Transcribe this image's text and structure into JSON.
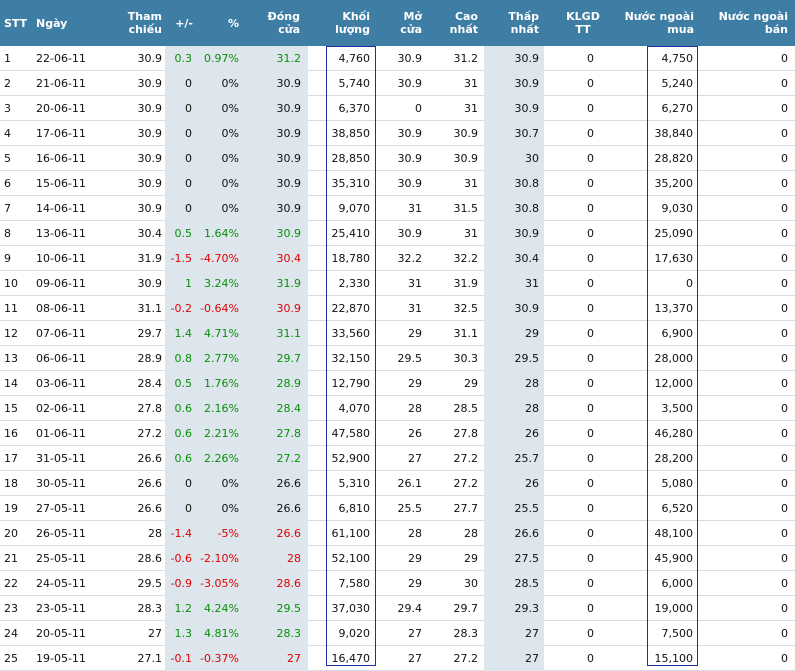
{
  "headers": {
    "stt": "STT",
    "ngay": "Ngày",
    "tham_chieu": [
      "Tham",
      "chiếu"
    ],
    "change": "+/-",
    "pct": "%",
    "dong_cua": [
      "Đóng",
      "cửa"
    ],
    "khoi_luong": [
      "Khối",
      "lượng"
    ],
    "mo_cua": [
      "Mở",
      "cửa"
    ],
    "cao_nhat": [
      "Cao",
      "nhất"
    ],
    "thap_nhat": [
      "Thấp",
      "nhất"
    ],
    "klgd_tt": [
      "KLGD",
      "TT"
    ],
    "nn_mua": [
      "Nước ngoài",
      "mua"
    ],
    "nn_ban": [
      "Nước ngoài",
      "bán"
    ]
  },
  "colors": {
    "header_bg": "#3e7da4",
    "up": "#0a8f0a",
    "down": "#e00000",
    "band": "#dde6ec",
    "box": "#1c2fa8"
  },
  "rows": [
    {
      "stt": "1",
      "date": "22-06-11",
      "ref": "30.9",
      "chg": "0.3",
      "pct": "0.97%",
      "close": "31.2",
      "vol": "4,760",
      "open": "30.9",
      "high": "31.2",
      "low": "30.9",
      "klgd": "0",
      "buy": "4,750",
      "sell": "0",
      "trend": "up"
    },
    {
      "stt": "2",
      "date": "21-06-11",
      "ref": "30.9",
      "chg": "0",
      "pct": "0%",
      "close": "30.9",
      "vol": "5,740",
      "open": "30.9",
      "high": "31",
      "low": "30.9",
      "klgd": "0",
      "buy": "5,240",
      "sell": "0",
      "trend": "flat"
    },
    {
      "stt": "3",
      "date": "20-06-11",
      "ref": "30.9",
      "chg": "0",
      "pct": "0%",
      "close": "30.9",
      "vol": "6,370",
      "open": "0",
      "high": "31",
      "low": "30.9",
      "klgd": "0",
      "buy": "6,270",
      "sell": "0",
      "trend": "flat"
    },
    {
      "stt": "4",
      "date": "17-06-11",
      "ref": "30.9",
      "chg": "0",
      "pct": "0%",
      "close": "30.9",
      "vol": "38,850",
      "open": "30.9",
      "high": "30.9",
      "low": "30.7",
      "klgd": "0",
      "buy": "38,840",
      "sell": "0",
      "trend": "flat"
    },
    {
      "stt": "5",
      "date": "16-06-11",
      "ref": "30.9",
      "chg": "0",
      "pct": "0%",
      "close": "30.9",
      "vol": "28,850",
      "open": "30.9",
      "high": "30.9",
      "low": "30",
      "klgd": "0",
      "buy": "28,820",
      "sell": "0",
      "trend": "flat"
    },
    {
      "stt": "6",
      "date": "15-06-11",
      "ref": "30.9",
      "chg": "0",
      "pct": "0%",
      "close": "30.9",
      "vol": "35,310",
      "open": "30.9",
      "high": "31",
      "low": "30.8",
      "klgd": "0",
      "buy": "35,200",
      "sell": "0",
      "trend": "flat"
    },
    {
      "stt": "7",
      "date": "14-06-11",
      "ref": "30.9",
      "chg": "0",
      "pct": "0%",
      "close": "30.9",
      "vol": "9,070",
      "open": "31",
      "high": "31.5",
      "low": "30.8",
      "klgd": "0",
      "buy": "9,030",
      "sell": "0",
      "trend": "flat"
    },
    {
      "stt": "8",
      "date": "13-06-11",
      "ref": "30.4",
      "chg": "0.5",
      "pct": "1.64%",
      "close": "30.9",
      "vol": "25,410",
      "open": "30.9",
      "high": "31",
      "low": "30.9",
      "klgd": "0",
      "buy": "25,090",
      "sell": "0",
      "trend": "up"
    },
    {
      "stt": "9",
      "date": "10-06-11",
      "ref": "31.9",
      "chg": "-1.5",
      "pct": "-4.70%",
      "close": "30.4",
      "vol": "18,780",
      "open": "32.2",
      "high": "32.2",
      "low": "30.4",
      "klgd": "0",
      "buy": "17,630",
      "sell": "0",
      "trend": "down"
    },
    {
      "stt": "10",
      "date": "09-06-11",
      "ref": "30.9",
      "chg": "1",
      "pct": "3.24%",
      "close": "31.9",
      "vol": "2,330",
      "open": "31",
      "high": "31.9",
      "low": "31",
      "klgd": "0",
      "buy": "0",
      "sell": "0",
      "trend": "up"
    },
    {
      "stt": "11",
      "date": "08-06-11",
      "ref": "31.1",
      "chg": "-0.2",
      "pct": "-0.64%",
      "close": "30.9",
      "vol": "22,870",
      "open": "31",
      "high": "32.5",
      "low": "30.9",
      "klgd": "0",
      "buy": "13,370",
      "sell": "0",
      "trend": "down"
    },
    {
      "stt": "12",
      "date": "07-06-11",
      "ref": "29.7",
      "chg": "1.4",
      "pct": "4.71%",
      "close": "31.1",
      "vol": "33,560",
      "open": "29",
      "high": "31.1",
      "low": "29",
      "klgd": "0",
      "buy": "6,900",
      "sell": "0",
      "trend": "up"
    },
    {
      "stt": "13",
      "date": "06-06-11",
      "ref": "28.9",
      "chg": "0.8",
      "pct": "2.77%",
      "close": "29.7",
      "vol": "32,150",
      "open": "29.5",
      "high": "30.3",
      "low": "29.5",
      "klgd": "0",
      "buy": "28,000",
      "sell": "0",
      "trend": "up"
    },
    {
      "stt": "14",
      "date": "03-06-11",
      "ref": "28.4",
      "chg": "0.5",
      "pct": "1.76%",
      "close": "28.9",
      "vol": "12,790",
      "open": "29",
      "high": "29",
      "low": "28",
      "klgd": "0",
      "buy": "12,000",
      "sell": "0",
      "trend": "up"
    },
    {
      "stt": "15",
      "date": "02-06-11",
      "ref": "27.8",
      "chg": "0.6",
      "pct": "2.16%",
      "close": "28.4",
      "vol": "4,070",
      "open": "28",
      "high": "28.5",
      "low": "28",
      "klgd": "0",
      "buy": "3,500",
      "sell": "0",
      "trend": "up"
    },
    {
      "stt": "16",
      "date": "01-06-11",
      "ref": "27.2",
      "chg": "0.6",
      "pct": "2.21%",
      "close": "27.8",
      "vol": "47,580",
      "open": "26",
      "high": "27.8",
      "low": "26",
      "klgd": "0",
      "buy": "46,280",
      "sell": "0",
      "trend": "up"
    },
    {
      "stt": "17",
      "date": "31-05-11",
      "ref": "26.6",
      "chg": "0.6",
      "pct": "2.26%",
      "close": "27.2",
      "vol": "52,900",
      "open": "27",
      "high": "27.2",
      "low": "25.7",
      "klgd": "0",
      "buy": "28,200",
      "sell": "0",
      "trend": "up"
    },
    {
      "stt": "18",
      "date": "30-05-11",
      "ref": "26.6",
      "chg": "0",
      "pct": "0%",
      "close": "26.6",
      "vol": "5,310",
      "open": "26.1",
      "high": "27.2",
      "low": "26",
      "klgd": "0",
      "buy": "5,080",
      "sell": "0",
      "trend": "flat"
    },
    {
      "stt": "19",
      "date": "27-05-11",
      "ref": "26.6",
      "chg": "0",
      "pct": "0%",
      "close": "26.6",
      "vol": "6,810",
      "open": "25.5",
      "high": "27.7",
      "low": "25.5",
      "klgd": "0",
      "buy": "6,520",
      "sell": "0",
      "trend": "flat"
    },
    {
      "stt": "20",
      "date": "26-05-11",
      "ref": "28",
      "chg": "-1.4",
      "pct": "-5%",
      "close": "26.6",
      "vol": "61,100",
      "open": "28",
      "high": "28",
      "low": "26.6",
      "klgd": "0",
      "buy": "48,100",
      "sell": "0",
      "trend": "down"
    },
    {
      "stt": "21",
      "date": "25-05-11",
      "ref": "28.6",
      "chg": "-0.6",
      "pct": "-2.10%",
      "close": "28",
      "vol": "52,100",
      "open": "29",
      "high": "29",
      "low": "27.5",
      "klgd": "0",
      "buy": "45,900",
      "sell": "0",
      "trend": "down"
    },
    {
      "stt": "22",
      "date": "24-05-11",
      "ref": "29.5",
      "chg": "-0.9",
      "pct": "-3.05%",
      "close": "28.6",
      "vol": "7,580",
      "open": "29",
      "high": "30",
      "low": "28.5",
      "klgd": "0",
      "buy": "6,000",
      "sell": "0",
      "trend": "down"
    },
    {
      "stt": "23",
      "date": "23-05-11",
      "ref": "28.3",
      "chg": "1.2",
      "pct": "4.24%",
      "close": "29.5",
      "vol": "37,030",
      "open": "29.4",
      "high": "29.7",
      "low": "29.3",
      "klgd": "0",
      "buy": "19,000",
      "sell": "0",
      "trend": "up"
    },
    {
      "stt": "24",
      "date": "20-05-11",
      "ref": "27",
      "chg": "1.3",
      "pct": "4.81%",
      "close": "28.3",
      "vol": "9,020",
      "open": "27",
      "high": "28.3",
      "low": "27",
      "klgd": "0",
      "buy": "7,500",
      "sell": "0",
      "trend": "up"
    },
    {
      "stt": "25",
      "date": "19-05-11",
      "ref": "27.1",
      "chg": "-0.1",
      "pct": "-0.37%",
      "close": "27",
      "vol": "16,470",
      "open": "27",
      "high": "27.2",
      "low": "27",
      "klgd": "0",
      "buy": "15,100",
      "sell": "0",
      "trend": "down"
    }
  ]
}
